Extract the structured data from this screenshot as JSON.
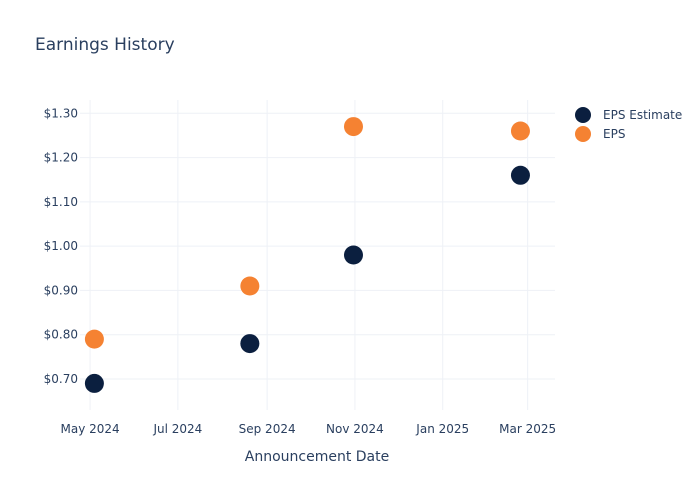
{
  "chart_data": {
    "type": "scatter",
    "title": "Earnings History",
    "xlabel": "Announcement Date",
    "ylabel": "",
    "x_tick_labels": [
      "May 2024",
      "Jul 2024",
      "Sep 2024",
      "Nov 2024",
      "Jan 2025",
      "Mar 2025"
    ],
    "x_tick_dates": [
      "2024-05-01",
      "2024-07-01",
      "2024-09-01",
      "2024-11-01",
      "2025-01-01",
      "2025-03-01"
    ],
    "xlim": [
      "2024-04-24",
      "2025-03-20"
    ],
    "y_tick_labels": [
      "$0.70",
      "$0.80",
      "$0.90",
      "$1.00",
      "$1.10",
      "$1.20",
      "$1.30"
    ],
    "y_ticks": [
      0.7,
      0.8,
      0.9,
      1.0,
      1.1,
      1.2,
      1.3
    ],
    "ylim": [
      0.63,
      1.33
    ],
    "grid": true,
    "legend_position": "top-right",
    "series": [
      {
        "name": "EPS Estimate",
        "color": "#0b1f3f",
        "points": [
          {
            "x": "2024-05-04",
            "y": 0.69
          },
          {
            "x": "2024-08-20",
            "y": 0.78
          },
          {
            "x": "2024-10-31",
            "y": 0.98
          },
          {
            "x": "2025-02-24",
            "y": 1.16
          }
        ]
      },
      {
        "name": "EPS",
        "color": "#f58232",
        "points": [
          {
            "x": "2024-05-04",
            "y": 0.79
          },
          {
            "x": "2024-08-20",
            "y": 0.91
          },
          {
            "x": "2024-10-31",
            "y": 1.27
          },
          {
            "x": "2025-02-24",
            "y": 1.26
          }
        ]
      }
    ]
  }
}
